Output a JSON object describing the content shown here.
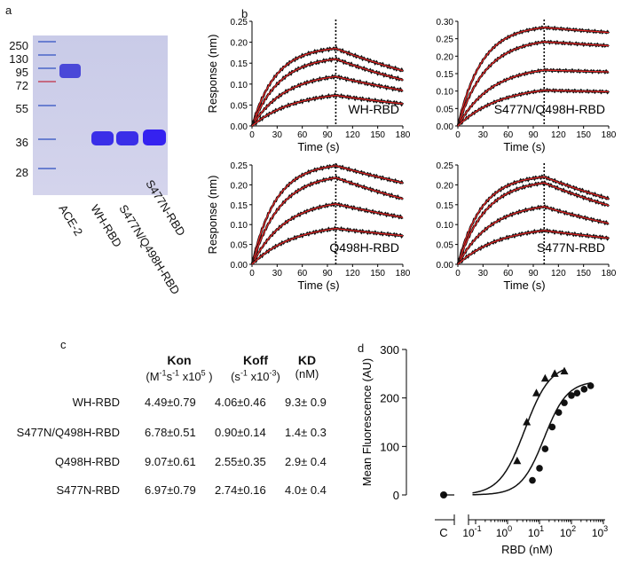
{
  "panels": {
    "a": "a",
    "b": "b",
    "c": "c",
    "d": "d"
  },
  "gel": {
    "markers": [
      "250",
      "130",
      "95",
      "72",
      "55",
      "36",
      "28"
    ],
    "lanes": [
      "ACE-2",
      "WH-RBD",
      "S477N/Q498H-RBD",
      "S477N-RBD"
    ]
  },
  "table": {
    "headers": [
      {
        "name": "Kon",
        "unit": "(M-1s-1 x105 )"
      },
      {
        "name": "Koff",
        "unit": "(s-1 x10-3)"
      },
      {
        "name": "KD",
        "unit": "(nM)"
      }
    ],
    "rows": [
      {
        "label": "WH-RBD",
        "kon": "4.49±0.79",
        "koff": "4.06±0.46",
        "kd": "9.3± 0.9"
      },
      {
        "label": "S477N/Q498H-RBD",
        "kon": "6.78±0.51",
        "koff": "0.90±0.14",
        "kd": "1.4± 0.3"
      },
      {
        "label": "Q498H-RBD",
        "kon": "9.07±0.61",
        "koff": "2.55±0.35",
        "kd": "2.9± 0.4"
      },
      {
        "label": "S477N-RBD",
        "kon": "6.97±0.79",
        "koff": "2.74±0.16",
        "kd": "4.0± 0.4"
      }
    ]
  },
  "chart_data": [
    {
      "type": "line",
      "title": "WH-RBD",
      "xlabel": "Time (s)",
      "ylabel": "Response (nm)",
      "xlim": [
        0,
        180
      ],
      "ylim": [
        0,
        0.25
      ],
      "xticks": [
        "0",
        "30",
        "60",
        "90",
        "120",
        "150",
        "180"
      ],
      "yticks": [
        "0.00",
        "0.05",
        "0.10",
        "0.15",
        "0.20",
        "0.25"
      ],
      "dissociation_start": 100,
      "series": [
        {
          "name": "c1",
          "peak": 0.185,
          "end": 0.132
        },
        {
          "name": "c2",
          "peak": 0.16,
          "end": 0.11
        },
        {
          "name": "c3",
          "peak": 0.118,
          "end": 0.085
        },
        {
          "name": "c4",
          "peak": 0.073,
          "end": 0.053
        }
      ]
    },
    {
      "type": "line",
      "title": "S477N/Q498H-RBD",
      "xlabel": "Time (s)",
      "ylabel": "",
      "xlim": [
        0,
        180
      ],
      "ylim": [
        0,
        0.3
      ],
      "xticks": [
        "0",
        "30",
        "60",
        "90",
        "120",
        "150",
        "180"
      ],
      "yticks": [
        "0.00",
        "0.05",
        "0.10",
        "0.15",
        "0.20",
        "0.25",
        "0.30"
      ],
      "dissociation_start": 103,
      "series": [
        {
          "name": "c1",
          "peak": 0.282,
          "end": 0.268
        },
        {
          "name": "c2",
          "peak": 0.241,
          "end": 0.23
        },
        {
          "name": "c3",
          "peak": 0.16,
          "end": 0.155
        },
        {
          "name": "c4",
          "peak": 0.102,
          "end": 0.098
        }
      ]
    },
    {
      "type": "line",
      "title": "Q498H-RBD",
      "xlabel": "Time (s)",
      "ylabel": "Response (nm)",
      "xlim": [
        0,
        180
      ],
      "ylim": [
        0,
        0.25
      ],
      "xticks": [
        "0",
        "30",
        "60",
        "90",
        "120",
        "150",
        "180"
      ],
      "yticks": [
        "0.00",
        "0.05",
        "0.10",
        "0.15",
        "0.20",
        "0.25"
      ],
      "dissociation_start": 100,
      "series": [
        {
          "name": "c1",
          "peak": 0.248,
          "end": 0.205
        },
        {
          "name": "c2",
          "peak": 0.218,
          "end": 0.165
        },
        {
          "name": "c3",
          "peak": 0.152,
          "end": 0.118
        },
        {
          "name": "c4",
          "peak": 0.09,
          "end": 0.072
        }
      ]
    },
    {
      "type": "line",
      "title": "S477N-RBD",
      "xlabel": "Time (s)",
      "ylabel": "",
      "xlim": [
        0,
        180
      ],
      "ylim": [
        0,
        0.25
      ],
      "xticks": [
        "0",
        "30",
        "60",
        "90",
        "120",
        "150",
        "180"
      ],
      "yticks": [
        "0.00",
        "0.05",
        "0.10",
        "0.15",
        "0.20",
        "0.25"
      ],
      "dissociation_start": 103,
      "series": [
        {
          "name": "c1",
          "peak": 0.22,
          "end": 0.165
        },
        {
          "name": "c2",
          "peak": 0.205,
          "end": 0.148
        },
        {
          "name": "c3",
          "peak": 0.145,
          "end": 0.103
        },
        {
          "name": "c4",
          "peak": 0.085,
          "end": 0.066
        }
      ]
    },
    {
      "type": "scatter",
      "title": "",
      "xlabel": "RBD (nM)",
      "ylabel": "Mean Fluorescence (AU)",
      "xscale": "log",
      "xlim": [
        0.1,
        1000
      ],
      "ylim": [
        0,
        300
      ],
      "xticks": [
        "C",
        "10-1",
        "100",
        "101",
        "102",
        "103"
      ],
      "yticks": [
        "0",
        "100",
        "200",
        "300"
      ],
      "control": {
        "x": "C",
        "y": 0
      },
      "series": [
        {
          "name": "triangles",
          "marker": "triangle",
          "x": [
            2,
            4,
            8,
            15,
            30,
            60
          ],
          "y": [
            70,
            150,
            210,
            240,
            250,
            255
          ]
        },
        {
          "name": "circles",
          "marker": "circle",
          "x": [
            6,
            10,
            15,
            25,
            40,
            60,
            100,
            150,
            250,
            400
          ],
          "y": [
            30,
            55,
            95,
            140,
            170,
            190,
            205,
            210,
            218,
            225
          ]
        }
      ]
    }
  ]
}
